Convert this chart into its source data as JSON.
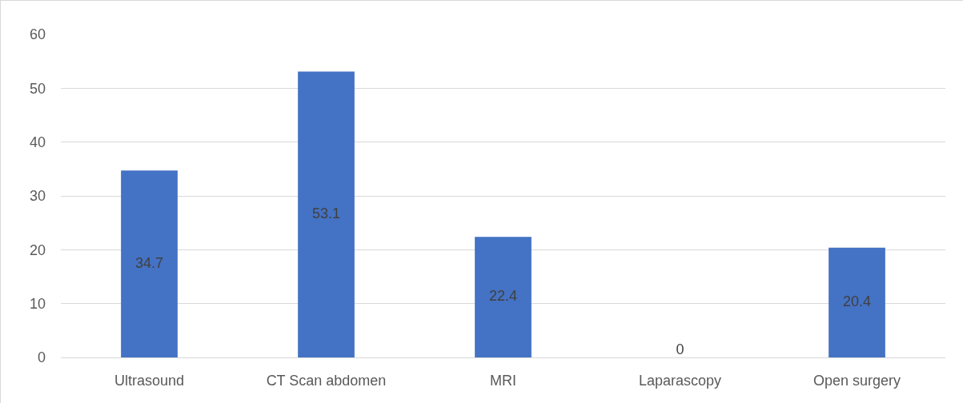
{
  "chart_data": {
    "type": "bar",
    "categories": [
      "Ultrasound",
      "CT Scan abdomen",
      "MRI",
      "Laparascopy",
      "Open surgery"
    ],
    "values": [
      34.7,
      53.1,
      22.4,
      0,
      20.4
    ],
    "color": "#4472c4",
    "ylim": [
      0,
      60
    ],
    "yticks": [
      0,
      10,
      20,
      30,
      40,
      50,
      60
    ],
    "grid": "y",
    "data_labels": true
  }
}
